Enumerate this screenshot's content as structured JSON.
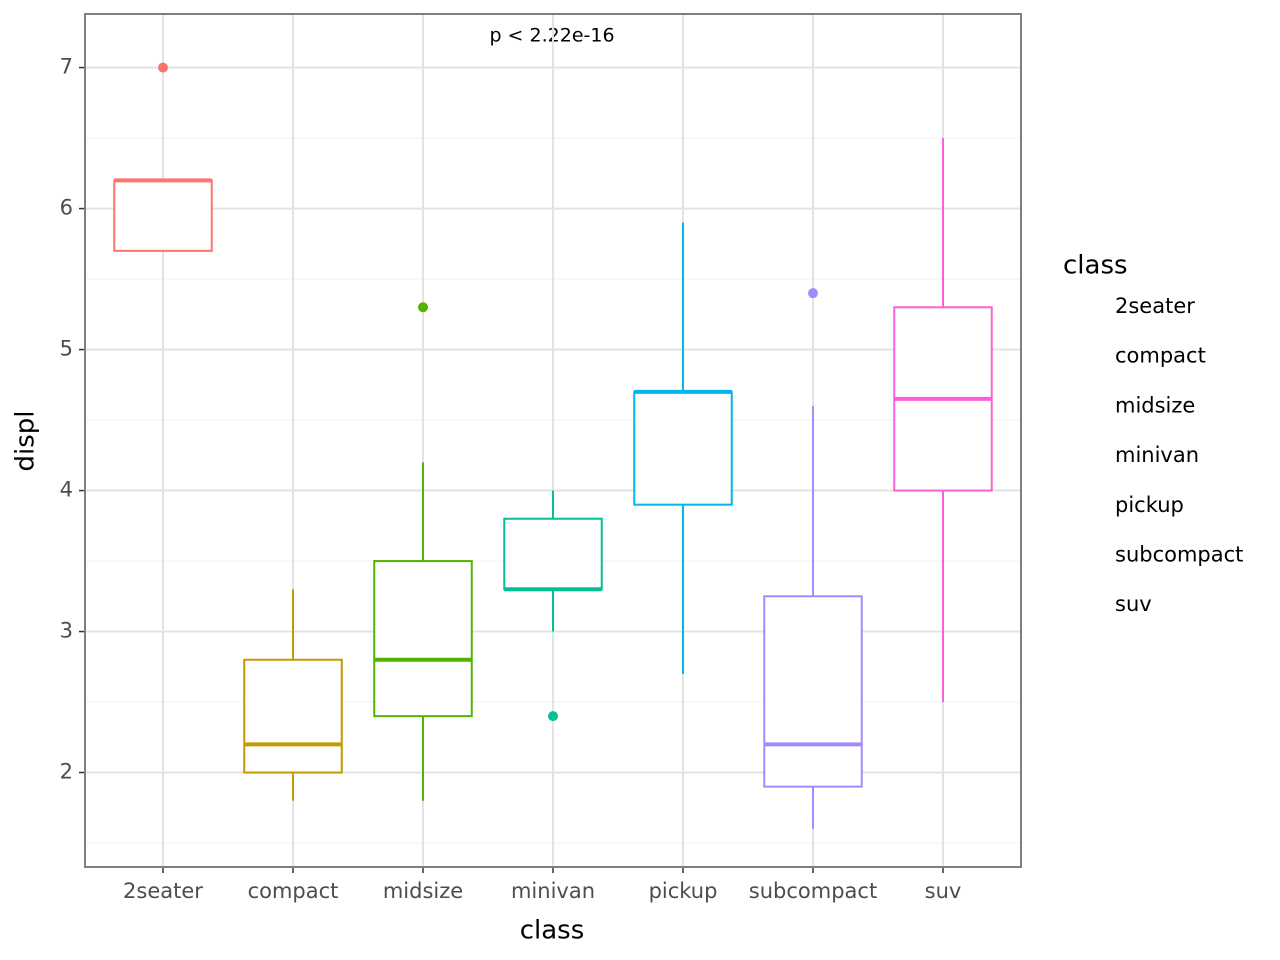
{
  "chart_data": {
    "type": "boxplot",
    "annotation": "p < 2.22e-16",
    "x_label": "class",
    "y_label": "displ",
    "legend_title": "class",
    "categories": [
      "2seater",
      "compact",
      "midsize",
      "minivan",
      "pickup",
      "subcompact",
      "suv"
    ],
    "boxes": [
      {
        "color": "#F8766D",
        "whisker_low": 5.7,
        "q1": 5.7,
        "median": 6.2,
        "q3": 6.2,
        "whisker_high": 6.2,
        "outliers": [
          7.0
        ]
      },
      {
        "color": "#C49A00",
        "whisker_low": 1.8,
        "q1": 2.0,
        "median": 2.2,
        "q3": 2.8,
        "whisker_high": 3.3,
        "outliers": []
      },
      {
        "color": "#53B400",
        "whisker_low": 1.8,
        "q1": 2.4,
        "median": 2.8,
        "q3": 3.5,
        "whisker_high": 4.2,
        "outliers": [
          5.3
        ]
      },
      {
        "color": "#00C094",
        "whisker_low": 3.0,
        "q1": 3.3,
        "median": 3.3,
        "q3": 3.8,
        "whisker_high": 4.0,
        "outliers": [
          2.4
        ]
      },
      {
        "color": "#00B6EB",
        "whisker_low": 2.7,
        "q1": 3.9,
        "median": 4.7,
        "q3": 4.7,
        "whisker_high": 5.9,
        "outliers": []
      },
      {
        "color": "#A58AFF",
        "whisker_low": 1.6,
        "q1": 1.9,
        "median": 2.2,
        "q3": 3.25,
        "whisker_high": 4.6,
        "outliers": [
          5.4
        ]
      },
      {
        "color": "#FB61D7",
        "whisker_low": 2.5,
        "q1": 4.0,
        "median": 4.65,
        "q3": 5.3,
        "whisker_high": 6.5,
        "outliers": []
      }
    ],
    "ylim": [
      1.33,
      7.38
    ],
    "yticks": [
      2,
      3,
      4,
      5,
      6,
      7
    ],
    "grid": true,
    "minor_grid": true,
    "legend_position": "right"
  }
}
